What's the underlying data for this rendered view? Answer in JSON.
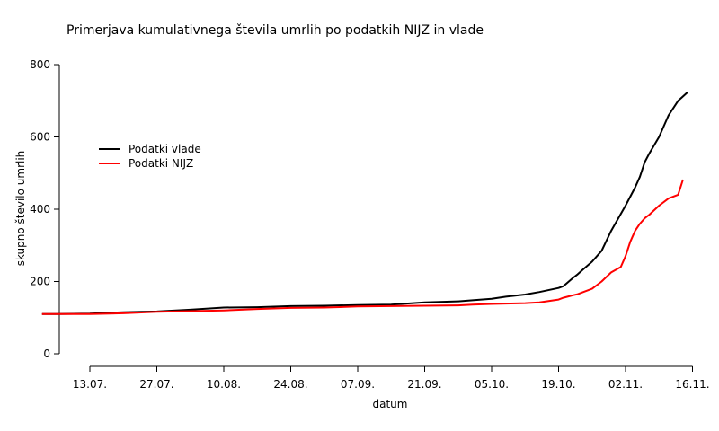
{
  "chart_data": {
    "type": "line",
    "title": "Primerjava kumulativnega števila umrlih po podatkih NIJZ in vlade",
    "xlabel": "datum",
    "ylabel": "skupno število umrlih",
    "x_ticks": [
      "13.07.",
      "27.07.",
      "10.08.",
      "24.08.",
      "07.09.",
      "21.09.",
      "05.10.",
      "19.10.",
      "02.11.",
      "16.11."
    ],
    "y_ticks": [
      0,
      200,
      400,
      600,
      800
    ],
    "ylim": [
      0,
      800
    ],
    "grid": false,
    "legend": {
      "position": "top-left",
      "items": [
        {
          "label": "Podatki vlade",
          "color": "#000000"
        },
        {
          "label": "Podatki NIJZ",
          "color": "#ff0000"
        }
      ]
    },
    "series": [
      {
        "name": "Podatki vlade",
        "color": "#000000",
        "x": [
          "03.07.",
          "06.07.",
          "13.07.",
          "20.07.",
          "27.07.",
          "03.08.",
          "10.08.",
          "17.08.",
          "24.08.",
          "31.08.",
          "07.09.",
          "14.09.",
          "21.09.",
          "28.09.",
          "01.10.",
          "05.10.",
          "08.10.",
          "12.10.",
          "15.10.",
          "19.10.",
          "20.10.",
          "22.10.",
          "23.10.",
          "24.10.",
          "26.10.",
          "28.10.",
          "30.10.",
          "02.11.",
          "04.11.",
          "05.11.",
          "06.11.",
          "07.11.",
          "09.11.",
          "11.11.",
          "13.11.",
          "15.11."
        ],
        "values": [
          110,
          110,
          111,
          115,
          117,
          122,
          128,
          129,
          132,
          133,
          135,
          136,
          142,
          145,
          148,
          152,
          158,
          164,
          171,
          182,
          187,
          210,
          220,
          232,
          255,
          285,
          340,
          410,
          460,
          490,
          530,
          555,
          600,
          660,
          700,
          724
        ]
      },
      {
        "name": "Podatki NIJZ",
        "color": "#ff0000",
        "x": [
          "03.07.",
          "06.07.",
          "13.07.",
          "20.07.",
          "27.07.",
          "03.08.",
          "10.08.",
          "17.08.",
          "24.08.",
          "31.08.",
          "07.09.",
          "14.09.",
          "21.09.",
          "28.09.",
          "01.10.",
          "05.10.",
          "08.10.",
          "12.10.",
          "15.10.",
          "19.10.",
          "20.10.",
          "22.10.",
          "23.10.",
          "24.10.",
          "26.10.",
          "28.10.",
          "30.10.",
          "01.11.",
          "02.11.",
          "03.11.",
          "04.11.",
          "05.11.",
          "06.11.",
          "07.11.",
          "09.11.",
          "11.11.",
          "13.11.",
          "14.11."
        ],
        "values": [
          110,
          110,
          110,
          112,
          116,
          118,
          120,
          124,
          127,
          128,
          131,
          132,
          133,
          134,
          136,
          138,
          139,
          140,
          142,
          150,
          155,
          162,
          165,
          170,
          180,
          200,
          225,
          240,
          270,
          310,
          340,
          360,
          375,
          385,
          410,
          430,
          440,
          482
        ]
      }
    ]
  }
}
